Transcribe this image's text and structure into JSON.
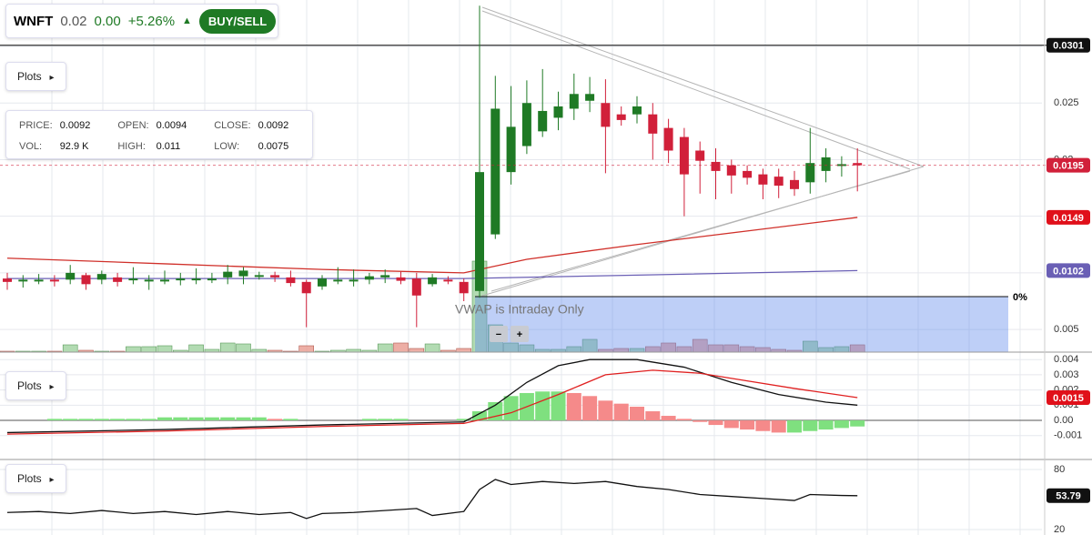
{
  "header": {
    "symbol": "WNFT",
    "price": "0.02",
    "change": "0.00",
    "change_pct": "+5.26%",
    "button": "BUY/SELL"
  },
  "plots_buttons": [
    "Plots",
    "Plots",
    "Plots"
  ],
  "info": {
    "rows": [
      [
        [
          "PRICE:",
          "0.0092"
        ],
        [
          "OPEN:",
          "0.0094"
        ],
        [
          "CLOSE:",
          "0.0092"
        ]
      ],
      [
        [
          "VOL:",
          "92.9 K"
        ],
        [
          "HIGH:",
          "0.011"
        ],
        [
          "LOW:",
          "0.0075"
        ]
      ]
    ]
  },
  "ui": {
    "vwap": "VWAP is Intraday Only",
    "fib_label": "0%",
    "zoom_out": "−",
    "zoom_in": "+"
  },
  "chart_data": [
    {
      "type": "candlestick",
      "up_color": "#1f7a25",
      "down_color": "#d1203a",
      "grid": true,
      "ylim": [
        0.003,
        0.0341
      ],
      "yticks": [
        0.005,
        0.01,
        0.015,
        0.02,
        0.025,
        0.03
      ],
      "open": [
        0.0095,
        0.0093,
        0.0094,
        0.0094,
        0.0094,
        0.0098,
        0.0094,
        0.0096,
        0.0094,
        0.0094,
        0.0094,
        0.0094,
        0.0094,
        0.0095,
        0.0096,
        0.0097,
        0.0098,
        0.0098,
        0.0096,
        0.0092,
        0.0088,
        0.0094,
        0.0093,
        0.0094,
        0.0096,
        0.0096,
        0.0095,
        0.009,
        0.0094,
        0.0092,
        0.0084,
        0.0134,
        0.0189,
        0.0212,
        0.0225,
        0.0237,
        0.0245,
        0.0252,
        0.025,
        0.024,
        0.024,
        0.024,
        0.0228,
        0.022,
        0.0208,
        0.0198,
        0.0195,
        0.019,
        0.0187,
        0.0185,
        0.0182,
        0.018,
        0.019,
        0.0196,
        0.0197
      ],
      "high": [
        0.01,
        0.0098,
        0.0099,
        0.0098,
        0.0107,
        0.01,
        0.0102,
        0.01,
        0.0105,
        0.0098,
        0.0102,
        0.01,
        0.0104,
        0.01,
        0.0107,
        0.0105,
        0.0101,
        0.0101,
        0.0102,
        0.0094,
        0.0098,
        0.0105,
        0.0103,
        0.01,
        0.0103,
        0.0101,
        0.01,
        0.0099,
        0.0097,
        0.0095,
        0.0336,
        0.0274,
        0.0265,
        0.027,
        0.028,
        0.026,
        0.0276,
        0.0273,
        0.0271,
        0.0247,
        0.0256,
        0.025,
        0.0236,
        0.0228,
        0.0216,
        0.021,
        0.02,
        0.0195,
        0.0192,
        0.0192,
        0.019,
        0.0228,
        0.021,
        0.0203,
        0.021
      ],
      "low": [
        0.0085,
        0.0087,
        0.009,
        0.0088,
        0.009,
        0.0085,
        0.009,
        0.0088,
        0.009,
        0.0085,
        0.009,
        0.0089,
        0.009,
        0.0091,
        0.009,
        0.009,
        0.0094,
        0.0092,
        0.0088,
        0.0052,
        0.0085,
        0.009,
        0.0088,
        0.009,
        0.0091,
        0.009,
        0.0052,
        0.0088,
        0.009,
        0.0075,
        0.0078,
        0.013,
        0.0178,
        0.0205,
        0.022,
        0.0226,
        0.0235,
        0.0242,
        0.0188,
        0.023,
        0.0232,
        0.02,
        0.0197,
        0.015,
        0.017,
        0.0165,
        0.017,
        0.0178,
        0.0165,
        0.0166,
        0.0168,
        0.017,
        0.018,
        0.0185,
        0.0172
      ],
      "close": [
        0.0092,
        0.0094,
        0.0094,
        0.0093,
        0.01,
        0.009,
        0.0099,
        0.0092,
        0.0095,
        0.0094,
        0.0094,
        0.0095,
        0.0095,
        0.0095,
        0.0101,
        0.0102,
        0.0098,
        0.0096,
        0.0091,
        0.0082,
        0.0095,
        0.0094,
        0.0094,
        0.0097,
        0.0098,
        0.0093,
        0.008,
        0.0096,
        0.0093,
        0.0082,
        0.0189,
        0.0245,
        0.0229,
        0.025,
        0.0243,
        0.0247,
        0.0258,
        0.0258,
        0.0229,
        0.0235,
        0.0247,
        0.0223,
        0.0208,
        0.0187,
        0.0199,
        0.019,
        0.0186,
        0.0184,
        0.0178,
        0.0177,
        0.0174,
        0.0197,
        0.0202,
        0.0196,
        0.0195
      ],
      "volume": [
        1,
        1,
        1,
        1,
        8,
        2,
        1,
        1,
        6,
        6,
        7,
        2,
        8,
        3,
        10,
        9,
        3,
        2,
        1,
        7,
        1,
        2,
        3,
        2,
        9,
        10,
        4,
        9,
        2,
        4,
        100,
        30,
        10,
        8,
        3,
        3,
        6,
        14,
        3,
        4,
        4,
        6,
        10,
        6,
        14,
        8,
        8,
        6,
        5,
        3,
        2,
        12,
        5,
        6,
        8
      ],
      "lines": [
        {
          "color": "#d0302a",
          "x": [
            0,
            10,
            20,
            29,
            33,
            40,
            47,
            54
          ],
          "values": [
            0.0113,
            0.0108,
            0.0103,
            0.01,
            0.0112,
            0.0125,
            0.0137,
            0.0149
          ]
        },
        {
          "color": "#6a5fb5",
          "x": [
            0,
            29,
            40,
            54
          ],
          "values": [
            0.0095,
            0.0095,
            0.0098,
            0.0102
          ]
        }
      ],
      "hline": {
        "value": 0.0301,
        "color": "#333333"
      },
      "price_tags": [
        {
          "value": 0.0301,
          "color": "#111111"
        },
        {
          "value": 0.0195,
          "color": "#d1203a"
        },
        {
          "value": 0.0149,
          "color": "#e0101a"
        },
        {
          "value": 0.0102,
          "color": "#6a5fb5"
        }
      ]
    },
    {
      "type": "macd",
      "grid": true,
      "ylim": [
        -0.00257,
        0.00449
      ],
      "yticks": [
        -0.001,
        {
          "value": 0,
          "label": "0.00"
        },
        0.001,
        0.002,
        0.003,
        0.004
      ],
      "histogram": [
        0,
        0,
        0,
        0.0001,
        0.0001,
        0.0001,
        0.0001,
        0.0001,
        0.0001,
        0.0001,
        0.0002,
        0.0002,
        0.0002,
        0.0002,
        0.0002,
        0.0002,
        0.0002,
        0.0001,
        0.0001,
        0,
        0,
        0,
        0,
        0.0001,
        0.0001,
        0.0001,
        0,
        0,
        0,
        0.0001,
        0.0006,
        0.0012,
        0.0016,
        0.0018,
        0.0019,
        0.0019,
        0.0018,
        0.0016,
        0.0013,
        0.0011,
        0.0009,
        0.0006,
        0.0003,
        0.0001,
        -0.0001,
        -0.0003,
        -0.0005,
        -0.0006,
        -0.0007,
        -0.0008,
        -0.0008,
        -0.0007,
        -0.0006,
        -0.0005,
        -0.0004
      ],
      "up_color": "#7fe07f",
      "down_color": "#f58a8a",
      "series": [
        {
          "color": "#111111",
          "x": [
            0,
            10,
            20,
            29,
            31,
            33,
            35,
            37,
            40,
            43,
            46,
            49,
            52,
            54
          ],
          "values": [
            -0.0008,
            -0.0006,
            -0.0003,
            -0.0001,
            0.001,
            0.0025,
            0.0036,
            0.004,
            0.004,
            0.0035,
            0.0025,
            0.0017,
            0.0012,
            0.001
          ]
        },
        {
          "color": "#e02020",
          "x": [
            0,
            10,
            20,
            29,
            32,
            35,
            38,
            41,
            44,
            47,
            50,
            54
          ],
          "values": [
            -0.0009,
            -0.0007,
            -0.0004,
            -0.0002,
            0.0005,
            0.0017,
            0.003,
            0.0033,
            0.0031,
            0.0026,
            0.0021,
            0.0015
          ]
        }
      ],
      "tag": {
        "value": 0.0015,
        "color": "#e0101a"
      }
    },
    {
      "type": "line",
      "grid": true,
      "ylim": [
        14.5,
        90
      ],
      "yticks": [
        20,
        80
      ],
      "series": [
        {
          "color": "#111111",
          "x": [
            0,
            2,
            4,
            6,
            8,
            10,
            12,
            14,
            16,
            18,
            19,
            20,
            22,
            26,
            27,
            29,
            30,
            31,
            32,
            34,
            36,
            38,
            40,
            42,
            44,
            46,
            48,
            50,
            51,
            53,
            54
          ],
          "values": [
            37,
            38,
            36,
            39,
            36,
            38,
            35,
            38,
            35,
            37,
            31,
            36,
            37,
            41,
            34,
            38,
            60,
            70,
            65,
            68,
            66,
            68,
            63,
            60,
            55,
            53,
            51,
            49,
            55,
            54,
            53.79
          ]
        }
      ],
      "tag": {
        "value": 53.79,
        "color": "#111111"
      }
    }
  ]
}
